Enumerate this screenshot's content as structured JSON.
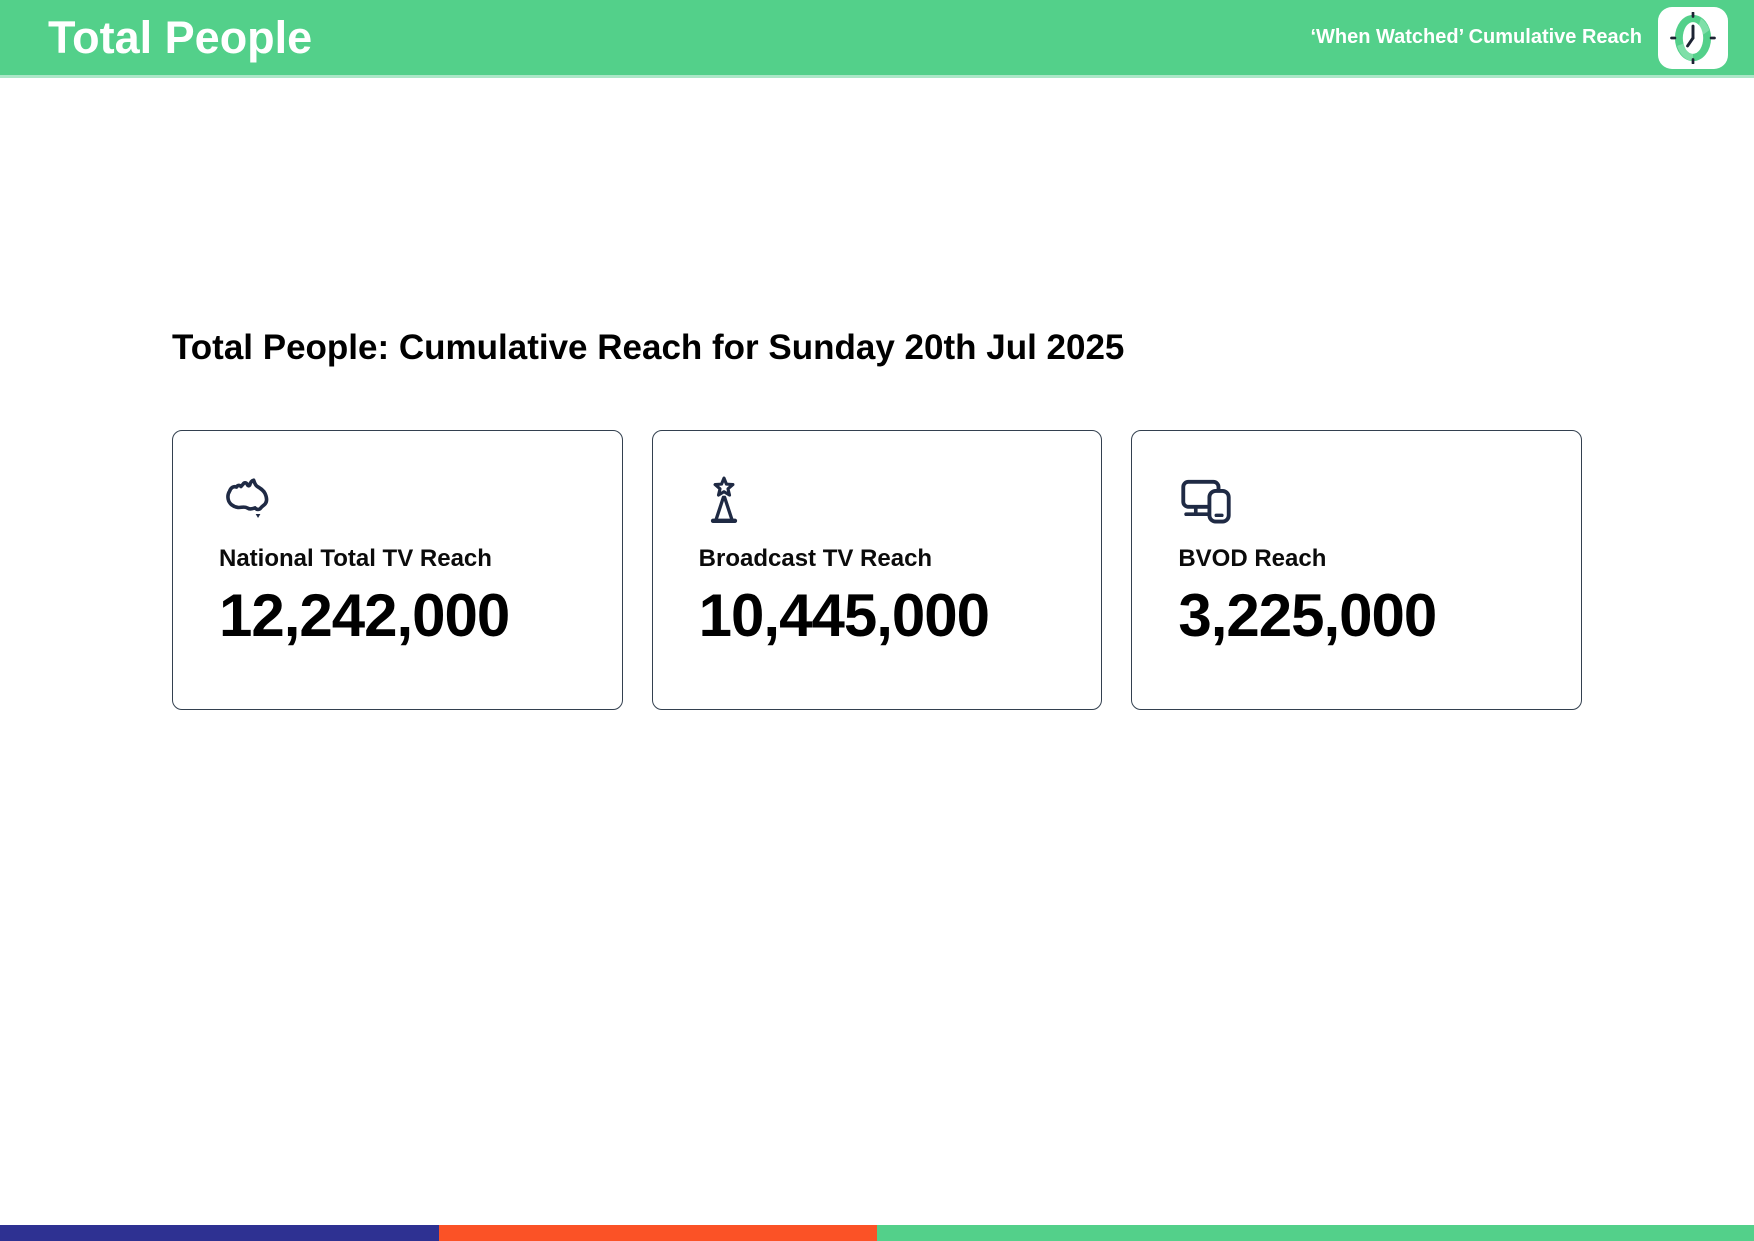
{
  "header": {
    "title": "Total People",
    "subtitle": "‘When Watched’ Cumulative Reach",
    "clock_icon": "clock-icon"
  },
  "main": {
    "heading": "Total People: Cumulative Reach for Sunday 20th Jul 2025",
    "cards": [
      {
        "icon": "australia-map-icon",
        "label": "National Total TV Reach",
        "value": "12,242,000"
      },
      {
        "icon": "broadcast-tower-icon",
        "label": "Broadcast TV Reach",
        "value": "10,445,000"
      },
      {
        "icon": "devices-icon",
        "label": "BVOD Reach",
        "value": "3,225,000"
      }
    ]
  },
  "colors": {
    "header_green": "#53d08a",
    "header_edge_light_green": "#abe7c7",
    "card_border": "#33404f",
    "icon_navy": "#1f2a44",
    "footer_blue": "#2e3192",
    "footer_orange": "#fb5226",
    "footer_green": "#53d08a"
  },
  "footer": {
    "segments": [
      {
        "name": "blue",
        "color": "#2e3192",
        "width": "25%"
      },
      {
        "name": "orange",
        "color": "#fb5226",
        "width": "25%"
      },
      {
        "name": "green",
        "color": "#53d08a",
        "width": "50%"
      }
    ]
  }
}
